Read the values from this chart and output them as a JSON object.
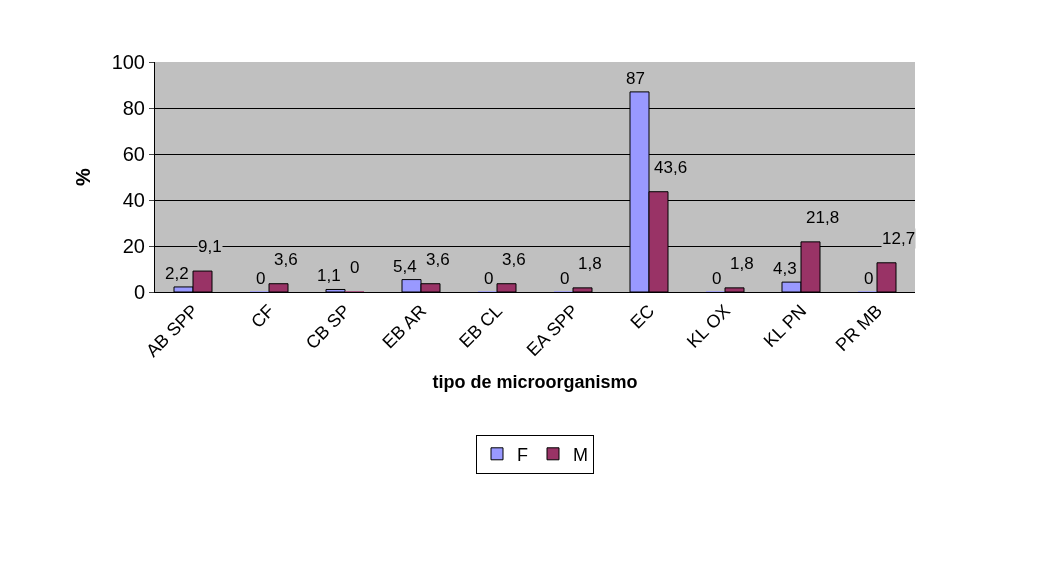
{
  "chart_data": {
    "type": "bar",
    "xlabel": "tipo de microorganismo",
    "ylabel": "%",
    "categories": [
      "AB SPP",
      "CF",
      "CB SP",
      "EB AR",
      "EB CL",
      "EA SPP",
      "EC",
      "KL OX",
      "KL PN",
      "PR MB"
    ],
    "series": [
      {
        "name": "F",
        "color": "#9999ff",
        "values": [
          2.2,
          0,
          1.1,
          5.4,
          0,
          0,
          87,
          0,
          4.3,
          0
        ],
        "value_labels": [
          "2,2",
          "0",
          "1,1",
          "5,4",
          "0",
          "0",
          "87",
          "0",
          "4,3",
          "0"
        ]
      },
      {
        "name": "M",
        "color": "#993366",
        "values": [
          9.1,
          3.6,
          0,
          3.6,
          3.6,
          1.8,
          43.6,
          1.8,
          21.8,
          12.7
        ],
        "value_labels": [
          "9,1",
          "3,6",
          "0",
          "3,6",
          "3,6",
          "1,8",
          "43,6",
          "1,8",
          "21,8",
          "12,7"
        ]
      }
    ],
    "ylim": [
      0,
      100
    ],
    "yticks": [
      0,
      20,
      40,
      60,
      80,
      100
    ],
    "grid": "y",
    "legend": "bottom"
  }
}
